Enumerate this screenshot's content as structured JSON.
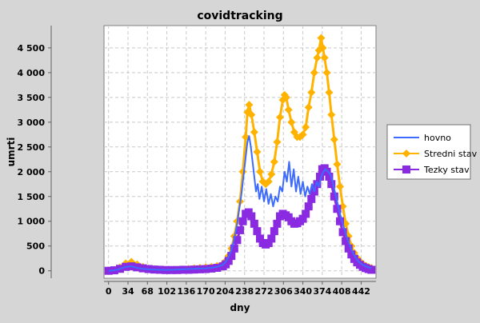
{
  "chart_data": {
    "type": "line",
    "title": "covidtracking",
    "xlabel": "dny",
    "ylabel": "umrti",
    "xlim": [
      -8,
      468
    ],
    "ylim": [
      -150,
      4950
    ],
    "x_ticks": [
      0,
      34,
      68,
      102,
      136,
      170,
      204,
      238,
      272,
      306,
      340,
      374,
      408,
      442
    ],
    "x_tick_labels": [
      "0",
      "34",
      "68",
      "102",
      "136",
      "170",
      "204",
      "238",
      "272",
      "306",
      "340",
      "374",
      "408",
      "442"
    ],
    "y_ticks": [
      0,
      500,
      1000,
      1500,
      2000,
      2500,
      3000,
      3500,
      4000,
      4500
    ],
    "y_tick_labels": [
      "0",
      "500",
      "1 000",
      "1 500",
      "2 000",
      "2 500",
      "3 000",
      "3 500",
      "4 000",
      "4 500"
    ],
    "grid": true,
    "legend_position": "right",
    "series": [
      {
        "name": "hovno",
        "color": "#3d6bff",
        "marker": "none",
        "x": [
          0,
          10,
          20,
          30,
          40,
          50,
          60,
          70,
          80,
          90,
          100,
          110,
          120,
          130,
          140,
          150,
          160,
          170,
          180,
          190,
          200,
          205,
          210,
          215,
          220,
          225,
          228,
          232,
          236,
          240,
          243,
          246,
          249,
          252,
          255,
          258,
          261,
          264,
          268,
          272,
          276,
          280,
          284,
          288,
          292,
          296,
          300,
          304,
          308,
          312,
          316,
          320,
          324,
          328,
          332,
          336,
          340,
          344,
          348,
          352,
          356,
          360,
          364,
          368,
          372,
          376,
          380,
          384,
          388,
          392,
          396,
          400,
          405,
          410,
          415,
          420,
          425,
          430,
          435,
          440,
          445,
          450,
          455,
          460
        ],
        "y": [
          0,
          10,
          40,
          80,
          90,
          60,
          40,
          30,
          25,
          20,
          20,
          20,
          25,
          30,
          35,
          40,
          45,
          50,
          60,
          80,
          120,
          180,
          280,
          420,
          650,
          950,
          1200,
          1500,
          1900,
          2300,
          2600,
          2720,
          2500,
          2200,
          1900,
          1600,
          1750,
          1450,
          1700,
          1400,
          1650,
          1350,
          1550,
          1300,
          1500,
          1400,
          1700,
          1600,
          2000,
          1800,
          2200,
          1700,
          2050,
          1600,
          1900,
          1550,
          1800,
          1500,
          1700,
          1550,
          1750,
          1600,
          1800,
          1700,
          1900,
          2000,
          2050,
          2000,
          1950,
          1800,
          1600,
          1400,
          1150,
          950,
          750,
          580,
          430,
          310,
          220,
          160,
          120,
          90,
          70,
          55
        ]
      },
      {
        "name": "Stredni stav",
        "color": "#ffb300",
        "marker": "diamond",
        "x": [
          0,
          10,
          20,
          30,
          40,
          50,
          60,
          70,
          80,
          90,
          100,
          110,
          120,
          130,
          140,
          150,
          160,
          170,
          180,
          190,
          200,
          205,
          210,
          215,
          220,
          225,
          230,
          235,
          240,
          243,
          246,
          250,
          255,
          260,
          265,
          270,
          275,
          280,
          285,
          290,
          295,
          300,
          305,
          308,
          311,
          315,
          320,
          325,
          330,
          335,
          340,
          345,
          350,
          355,
          360,
          365,
          368,
          372,
          375,
          378,
          382,
          386,
          390,
          395,
          400,
          405,
          410,
          415,
          420,
          425,
          430,
          435,
          440,
          445,
          450,
          455,
          460
        ],
        "y": [
          0,
          20,
          70,
          150,
          180,
          130,
          80,
          50,
          35,
          25,
          20,
          20,
          25,
          30,
          40,
          50,
          60,
          70,
          80,
          100,
          140,
          200,
          300,
          450,
          700,
          1000,
          1400,
          2000,
          2700,
          3200,
          3350,
          3150,
          2800,
          2400,
          2000,
          1800,
          1750,
          1800,
          1950,
          2200,
          2600,
          3100,
          3450,
          3550,
          3500,
          3250,
          3000,
          2800,
          2700,
          2700,
          2750,
          2900,
          3300,
          3600,
          4000,
          4300,
          4450,
          4700,
          4500,
          4300,
          4000,
          3600,
          3150,
          2650,
          2150,
          1700,
          1300,
          950,
          700,
          500,
          360,
          260,
          190,
          140,
          100,
          75,
          55
        ]
      },
      {
        "name": "Tezky stav",
        "color": "#8a2be2",
        "marker": "square",
        "x": [
          0,
          10,
          20,
          30,
          40,
          50,
          60,
          70,
          80,
          90,
          100,
          110,
          120,
          130,
          140,
          150,
          160,
          170,
          180,
          190,
          200,
          205,
          210,
          215,
          220,
          225,
          230,
          235,
          240,
          245,
          250,
          255,
          260,
          265,
          270,
          275,
          280,
          285,
          290,
          295,
          300,
          305,
          310,
          315,
          320,
          325,
          330,
          335,
          340,
          345,
          350,
          355,
          360,
          365,
          370,
          374,
          378,
          382,
          386,
          390,
          395,
          400,
          405,
          410,
          415,
          420,
          425,
          430,
          435,
          440,
          445,
          450,
          455,
          460
        ],
        "y": [
          0,
          10,
          40,
          80,
          90,
          70,
          50,
          35,
          25,
          20,
          15,
          15,
          15,
          20,
          20,
          25,
          30,
          35,
          45,
          60,
          90,
          130,
          200,
          300,
          450,
          620,
          820,
          1000,
          1150,
          1180,
          1100,
          950,
          800,
          650,
          560,
          530,
          560,
          650,
          800,
          950,
          1100,
          1150,
          1120,
          1080,
          1000,
          950,
          960,
          1000,
          1050,
          1150,
          1300,
          1450,
          1600,
          1750,
          1900,
          2050,
          2070,
          2000,
          1900,
          1750,
          1500,
          1250,
          1000,
          780,
          600,
          450,
          330,
          240,
          170,
          120,
          80,
          55,
          35,
          20
        ]
      }
    ]
  }
}
